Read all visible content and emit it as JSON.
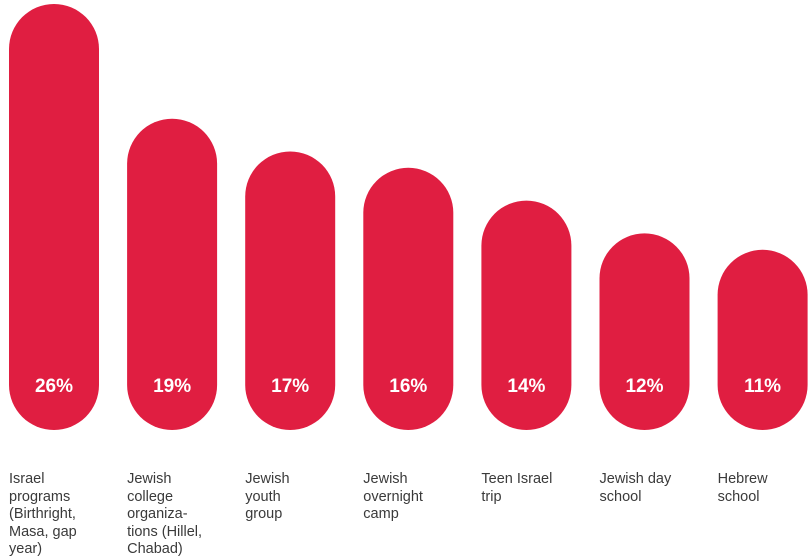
{
  "chart_data": {
    "type": "bar",
    "categories": [
      "Israel programs (Birthright, Masa, gap year)",
      "Jewish college organiza-tions (Hillel, Chabad)",
      "Jewish youth group",
      "Jewish overnight camp",
      "Teen Israel trip",
      "Jewish day school",
      "Hebrew school"
    ],
    "category_lines": [
      [
        "Israel",
        "programs",
        "(Birthright,",
        "Masa, gap",
        "year)"
      ],
      [
        "Jewish",
        "college",
        "organiza-",
        "tions (Hillel,",
        "Chabad)"
      ],
      [
        "Jewish",
        "youth",
        "group"
      ],
      [
        "Jewish",
        "overnight",
        "camp"
      ],
      [
        "Teen Israel",
        "trip"
      ],
      [
        "Jewish day",
        "school"
      ],
      [
        "Hebrew",
        "school"
      ]
    ],
    "values": [
      26,
      19,
      17,
      16,
      14,
      12,
      11
    ],
    "value_labels": [
      "26%",
      "19%",
      "17%",
      "16%",
      "14%",
      "12%",
      "11%"
    ],
    "bar_color": "#e01e41",
    "label_color": "#3a3a3a",
    "value_label_color": "#ffffff",
    "grid": false,
    "legend": "none"
  }
}
